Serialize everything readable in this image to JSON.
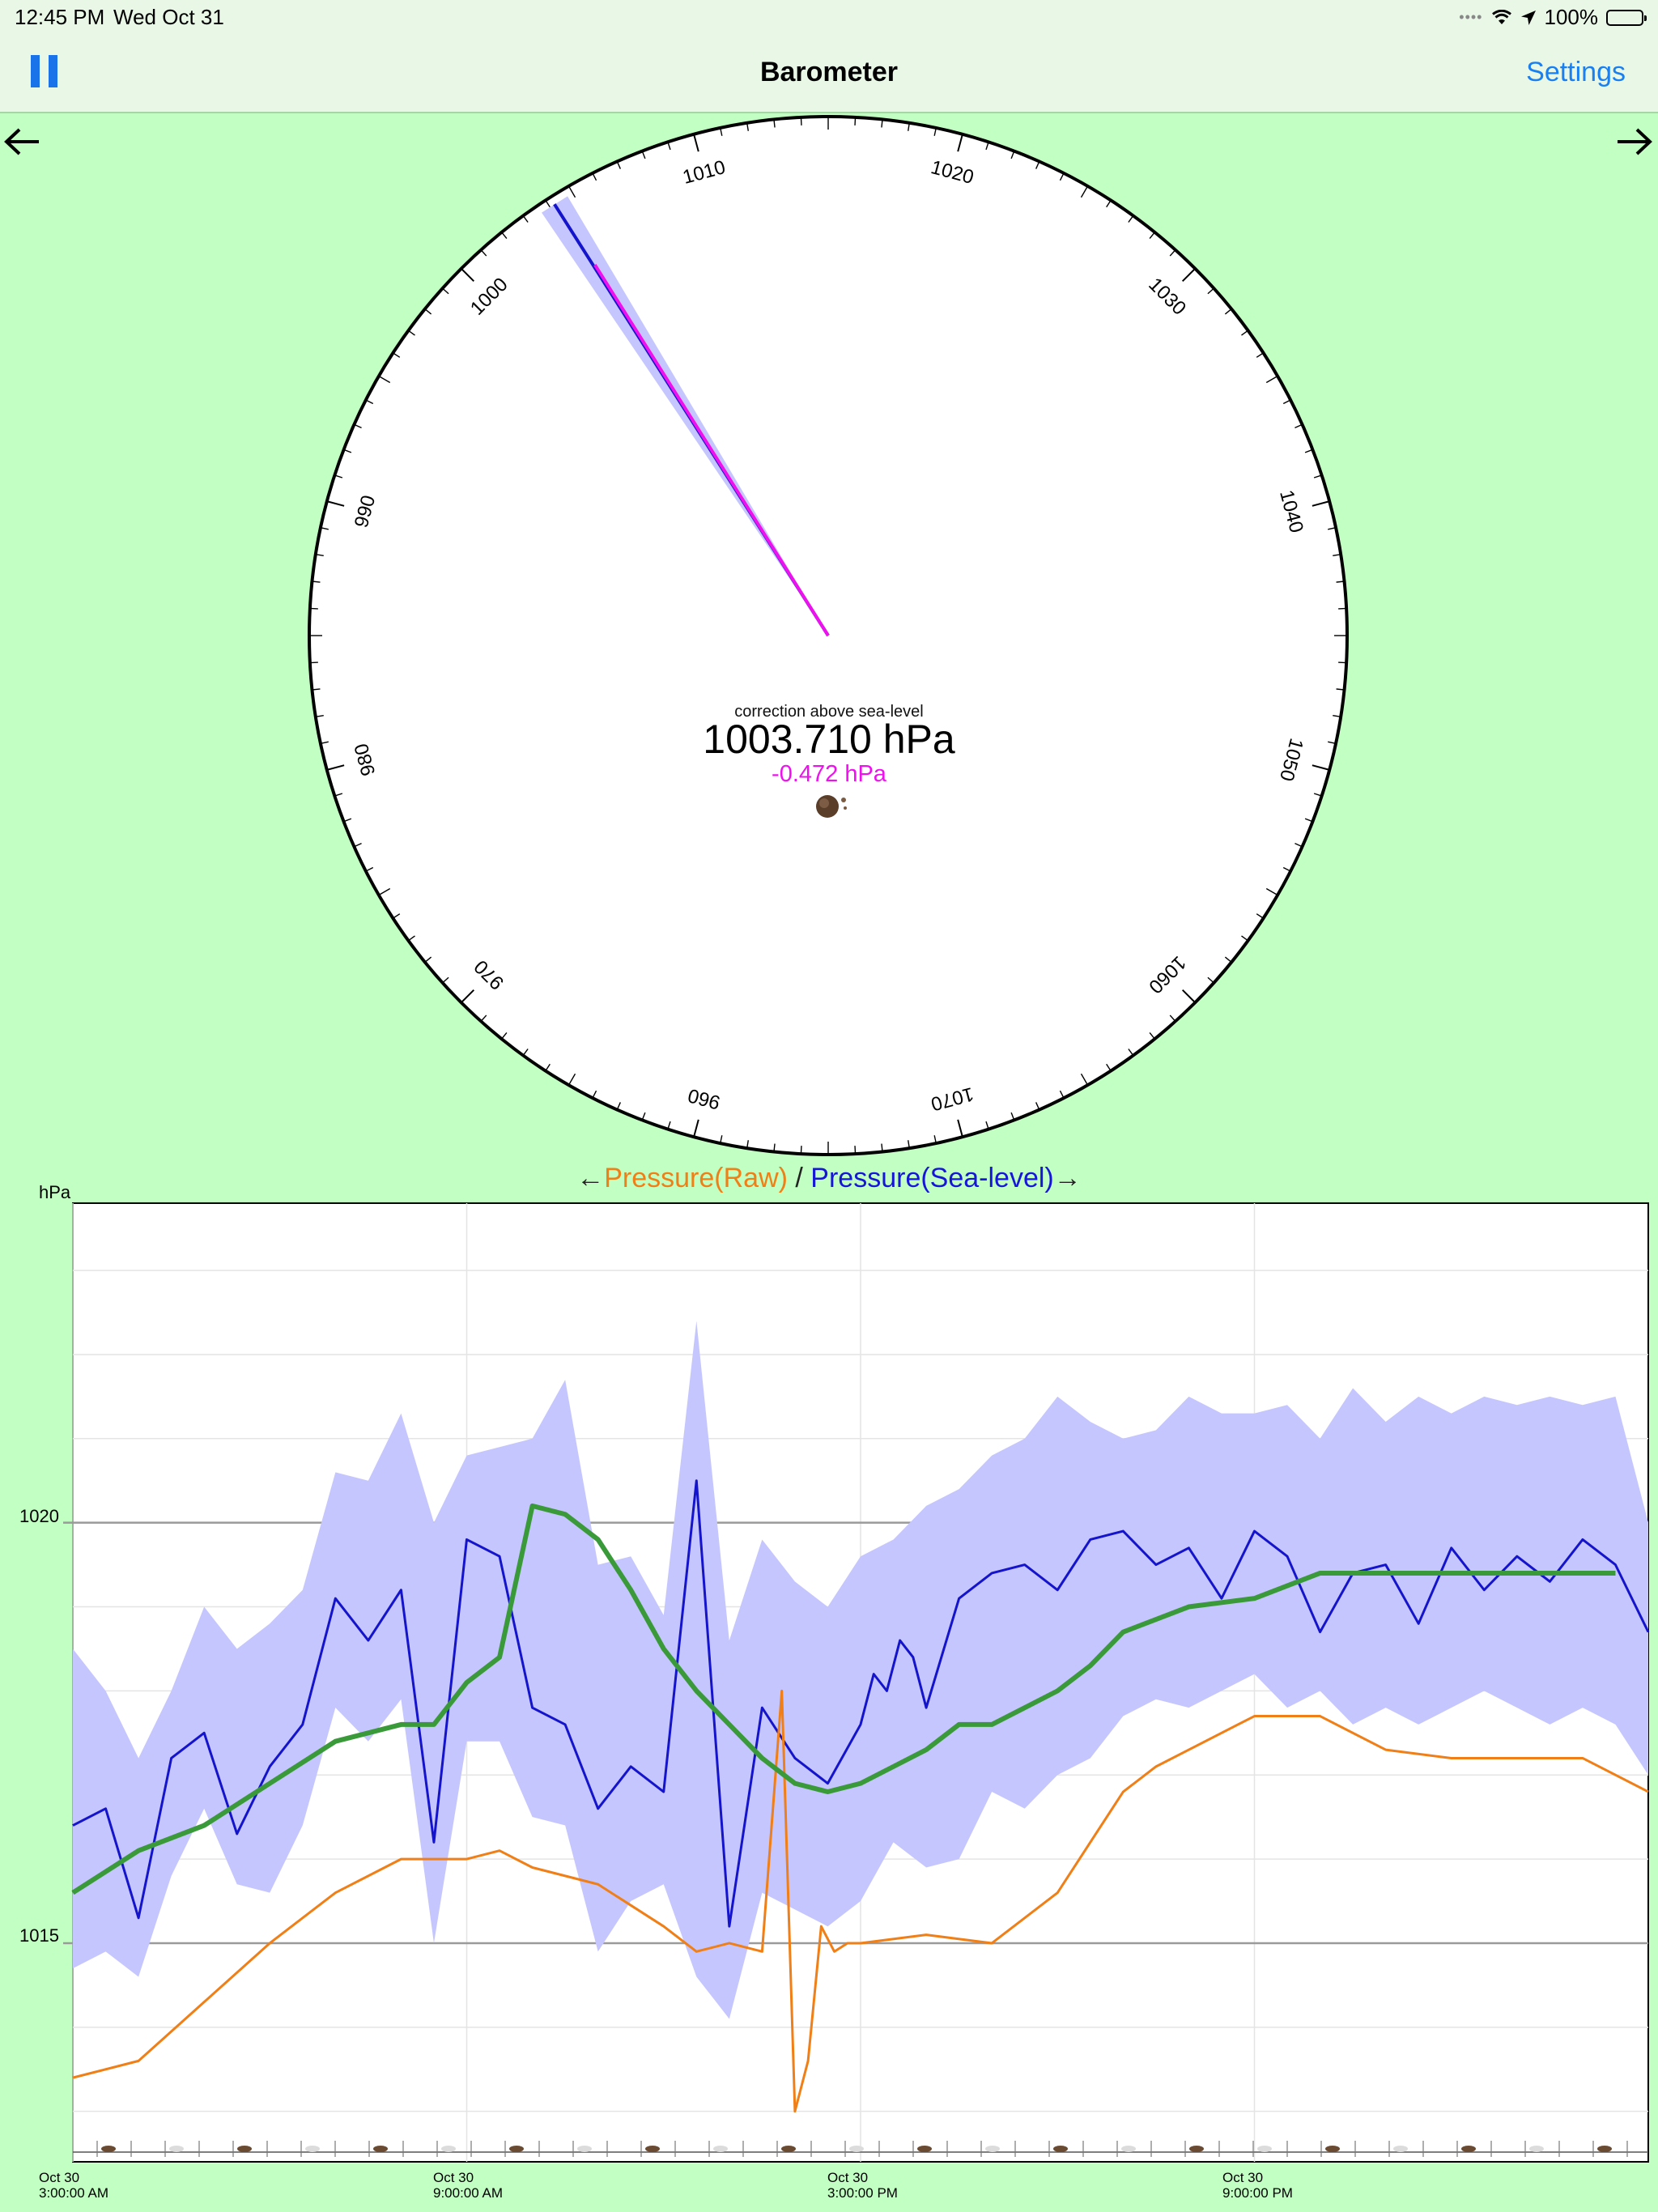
{
  "status_bar": {
    "time": "12:45 PM",
    "date": "Wed Oct 31",
    "battery": "100%"
  },
  "nav": {
    "title": "Barometer",
    "settings_label": "Settings"
  },
  "dial": {
    "scale_labels": [
      "960",
      "970",
      "980",
      "990",
      "1000",
      "1010",
      "1020",
      "1030",
      "1040",
      "1050",
      "1060",
      "1070"
    ],
    "needle_raw_hpa": 1003.7,
    "needle_sea_hpa": 1004.2,
    "correction_label": "correction above sea-level",
    "pressure_value": "1003.710 hPa",
    "pressure_delta": "-0.472 hPa"
  },
  "chart_header": {
    "left_arrow": "←",
    "raw_label": "Pressure(Raw)",
    "separator": " / ",
    "sea_label": "Pressure(Sea-level)",
    "right_arrow": "→"
  },
  "chart_data": {
    "type": "line",
    "ylabel": "hPa",
    "y_ticks": [
      "1020",
      "1015"
    ],
    "x_ticks": [
      {
        "date": "Oct 30",
        "time": "3:00:00 AM"
      },
      {
        "date": "Oct 30",
        "time": "9:00:00 AM"
      },
      {
        "date": "Oct 30",
        "time": "3:00:00 PM"
      },
      {
        "date": "Oct 30",
        "time": "9:00:00 PM"
      }
    ],
    "x_hours": [
      3,
      9,
      15,
      21
    ],
    "xlim_hours": [
      3,
      27
    ],
    "ylim": [
      1012.4,
      1023.8
    ],
    "series": [
      {
        "name": "Pressure(Sea-level)",
        "color": "#1414cc",
        "x": [
          3.0,
          3.5,
          4.0,
          4.5,
          5.0,
          5.5,
          6.0,
          6.5,
          7.0,
          7.5,
          8.0,
          8.5,
          9.0,
          9.5,
          10.0,
          10.5,
          11.0,
          11.5,
          12.0,
          12.5,
          13.0,
          13.5,
          14.0,
          14.5,
          15.0,
          15.2,
          15.4,
          15.6,
          15.8,
          16.0,
          16.5,
          17.0,
          17.5,
          18.0,
          18.5,
          19.0,
          19.5,
          20.0,
          20.5,
          21.0,
          21.5,
          22.0,
          22.5,
          23.0,
          23.5,
          24.0,
          24.5,
          25.0,
          25.5,
          26.0,
          26.5,
          27.0
        ],
        "values": [
          1016.4,
          1016.6,
          1015.3,
          1017.2,
          1017.5,
          1016.3,
          1017.1,
          1017.6,
          1019.1,
          1018.6,
          1019.2,
          1016.2,
          1019.8,
          1019.6,
          1017.8,
          1017.6,
          1016.6,
          1017.1,
          1016.8,
          1020.5,
          1015.2,
          1017.8,
          1017.2,
          1016.9,
          1017.6,
          1018.2,
          1018.0,
          1018.6,
          1018.4,
          1017.8,
          1019.1,
          1019.4,
          1019.5,
          1019.2,
          1019.8,
          1019.9,
          1019.5,
          1019.7,
          1019.1,
          1019.9,
          1019.6,
          1018.7,
          1019.4,
          1019.5,
          1018.8,
          1019.7,
          1019.2,
          1019.6,
          1019.3,
          1019.8,
          1019.5,
          1018.7
        ]
      },
      {
        "name": "Pressure(Raw)",
        "color": "#ef7f16",
        "x": [
          3.0,
          4.0,
          5.0,
          6.0,
          7.0,
          8.0,
          9.0,
          9.5,
          10.0,
          11.0,
          12.0,
          12.5,
          13.0,
          13.5,
          13.8,
          14.0,
          14.2,
          14.4,
          14.6,
          14.8,
          15.0,
          16.0,
          17.0,
          18.0,
          18.5,
          19.0,
          19.5,
          20.0,
          21.0,
          22.0,
          23.0,
          24.0,
          25.0,
          26.0,
          27.0
        ],
        "values": [
          1013.4,
          1013.6,
          1014.3,
          1015.0,
          1015.6,
          1016.0,
          1016.0,
          1016.1,
          1015.9,
          1015.7,
          1015.2,
          1014.9,
          1015.0,
          1014.9,
          1018.0,
          1013.0,
          1013.6,
          1015.2,
          1014.9,
          1015.0,
          1015.0,
          1015.1,
          1015.0,
          1015.6,
          1016.2,
          1016.8,
          1017.1,
          1017.3,
          1017.7,
          1017.7,
          1017.3,
          1017.2,
          1017.2,
          1017.2,
          1016.8
        ]
      },
      {
        "name": "Trend",
        "color": "#3a9a3a",
        "x": [
          3.0,
          4.0,
          5.0,
          6.0,
          7.0,
          8.0,
          8.5,
          9.0,
          9.5,
          10.0,
          10.5,
          11.0,
          11.5,
          12.0,
          12.5,
          13.0,
          13.5,
          14.0,
          14.5,
          15.0,
          15.5,
          16.0,
          16.5,
          17.0,
          17.5,
          18.0,
          18.5,
          19.0,
          20.0,
          21.0,
          22.0,
          22.5,
          23.0,
          24.0,
          25.0,
          26.0,
          26.5
        ],
        "values": [
          1015.6,
          1016.1,
          1016.4,
          1016.9,
          1017.4,
          1017.6,
          1017.6,
          1018.1,
          1018.4,
          1020.2,
          1020.1,
          1019.8,
          1019.2,
          1018.5,
          1018.0,
          1017.6,
          1017.2,
          1016.9,
          1016.8,
          1016.9,
          1017.1,
          1017.3,
          1017.6,
          1017.6,
          1017.8,
          1018.0,
          1018.3,
          1018.7,
          1019.0,
          1019.1,
          1019.4,
          1019.4,
          1019.4,
          1019.4,
          1019.4,
          1019.4,
          1019.4
        ]
      }
    ],
    "band": {
      "color": "#c6c6ff",
      "x": [
        3.0,
        3.5,
        4.0,
        4.5,
        5.0,
        5.5,
        6.0,
        6.5,
        7.0,
        7.5,
        8.0,
        8.5,
        9.0,
        9.5,
        10.0,
        10.5,
        11.0,
        11.5,
        12.0,
        12.5,
        13.0,
        13.5,
        14.0,
        14.5,
        15.0,
        15.5,
        16.0,
        16.5,
        17.0,
        17.5,
        18.0,
        18.5,
        19.0,
        19.5,
        20.0,
        20.5,
        21.0,
        21.5,
        22.0,
        22.5,
        23.0,
        23.5,
        24.0,
        24.5,
        25.0,
        25.5,
        26.0,
        26.5,
        27.0
      ],
      "upper": [
        1018.5,
        1018.0,
        1017.2,
        1018.0,
        1019.0,
        1018.5,
        1018.8,
        1019.2,
        1020.6,
        1020.5,
        1021.3,
        1020.0,
        1020.8,
        1020.9,
        1021.0,
        1021.7,
        1019.5,
        1019.6,
        1018.9,
        1022.4,
        1018.6,
        1019.8,
        1019.3,
        1019.0,
        1019.6,
        1019.8,
        1020.2,
        1020.4,
        1020.8,
        1021.0,
        1021.5,
        1021.2,
        1021.0,
        1021.1,
        1021.5,
        1021.3,
        1021.3,
        1021.4,
        1021.0,
        1021.6,
        1021.2,
        1021.5,
        1021.3,
        1021.5,
        1021.4,
        1021.5,
        1021.4,
        1021.5,
        1020.0
      ],
      "lower": [
        1014.7,
        1014.9,
        1014.6,
        1015.8,
        1016.6,
        1015.7,
        1015.6,
        1016.4,
        1017.8,
        1017.4,
        1017.9,
        1015.0,
        1017.4,
        1017.4,
        1016.5,
        1016.4,
        1014.9,
        1015.5,
        1015.7,
        1014.6,
        1014.1,
        1015.6,
        1015.4,
        1015.2,
        1015.5,
        1016.2,
        1015.9,
        1016.0,
        1016.8,
        1016.6,
        1017.0,
        1017.2,
        1017.7,
        1017.9,
        1017.8,
        1018.0,
        1018.2,
        1017.8,
        1018.0,
        1017.6,
        1017.8,
        1017.6,
        1017.8,
        1018.0,
        1017.8,
        1017.6,
        1017.8,
        1017.6,
        1017.0
      ]
    }
  },
  "icons": {
    "wifi": "wifi-icon",
    "location": "location-arrow-icon",
    "pause": "pause-icon",
    "back": "arrow-left-icon",
    "forward": "arrow-right-icon",
    "weather": "weather-icon"
  },
  "colors": {
    "background": "#c2ffc2",
    "accent": "#1a7ff0",
    "sea_level": "#1414cc",
    "raw": "#ef7f16",
    "trend": "#3a9a3a",
    "delta": "#ee11ee"
  }
}
